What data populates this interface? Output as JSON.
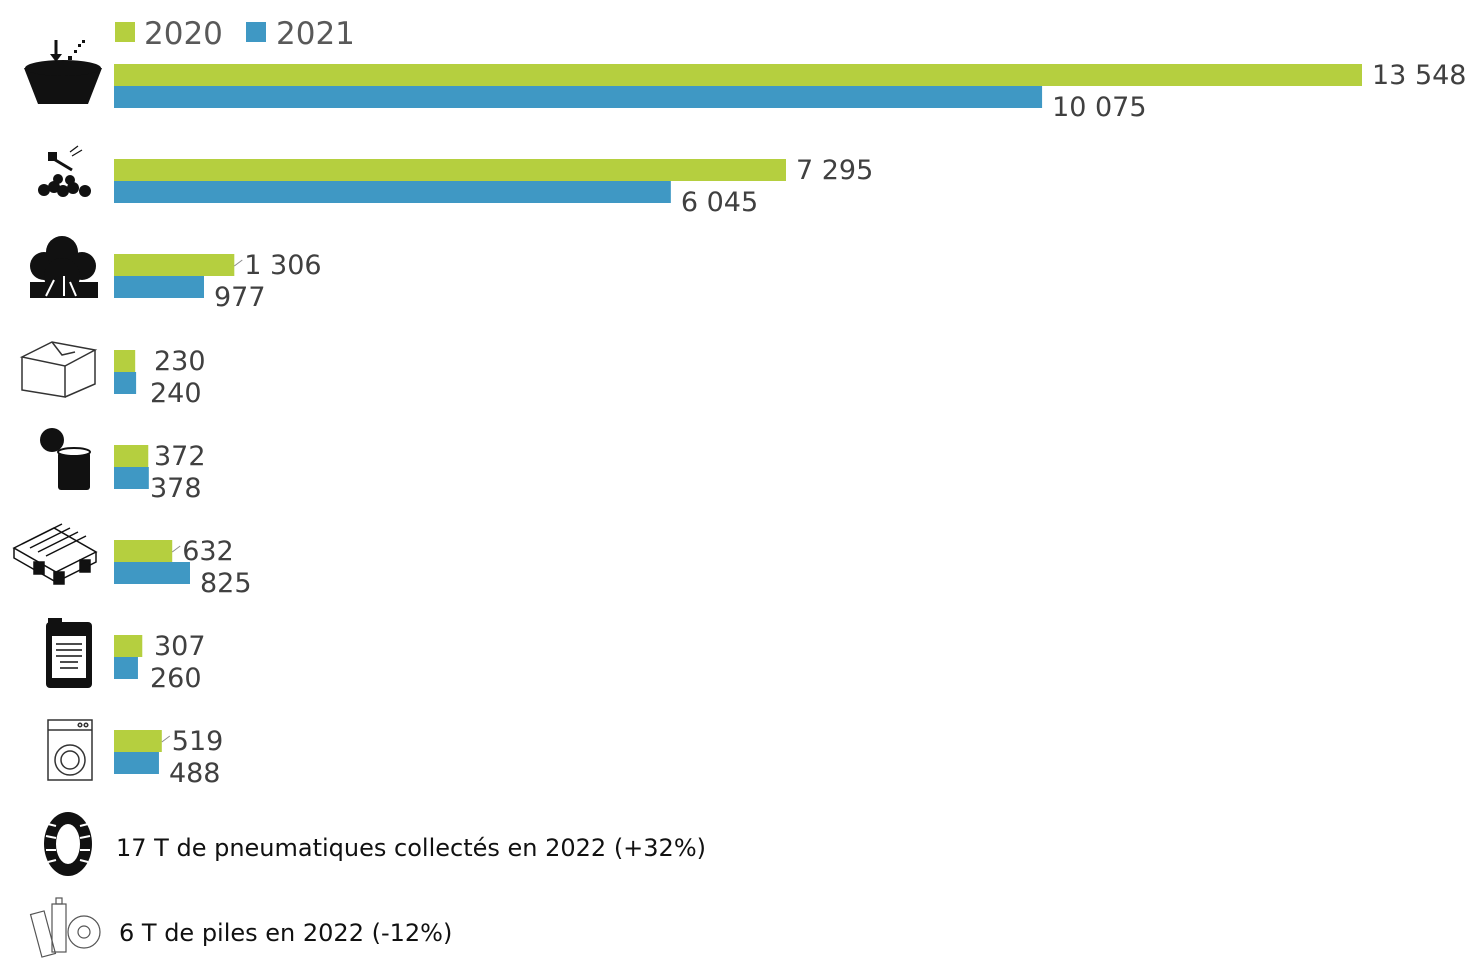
{
  "colors": {
    "series_2020": "#B5CF3F",
    "series_2021": "#3F98C4",
    "label": "#404040",
    "icon": "#111111"
  },
  "chart_data": {
    "type": "bar",
    "orientation": "horizontal",
    "categories": [
      "bulky-waste-icon",
      "rubble-icon",
      "green-waste-icon",
      "cardboard-icon",
      "metal-icon",
      "wooden-pallet-icon",
      "chemical-canister-icon",
      "appliance-icon"
    ],
    "series": [
      {
        "name": "2020",
        "values": [
          13548,
          7295,
          1306,
          230,
          372,
          632,
          307,
          519
        ],
        "labels": [
          "13 548",
          "7 295",
          "1 306",
          "230",
          "372",
          "632",
          "307",
          "519"
        ]
      },
      {
        "name": "2021",
        "values": [
          10075,
          6045,
          977,
          240,
          378,
          825,
          260,
          488
        ],
        "labels": [
          "10 075",
          "6 045",
          "977",
          "240",
          "378",
          "825",
          "260",
          "488"
        ]
      }
    ],
    "legend": "top-left",
    "grid": false
  },
  "notes": [
    {
      "icon": "tire-icon",
      "text": "17 T de pneumatiques collectés en 2022 (+32%)"
    },
    {
      "icon": "batteries-icon",
      "text": "6 T de piles en 2022 (-12%)"
    }
  ]
}
